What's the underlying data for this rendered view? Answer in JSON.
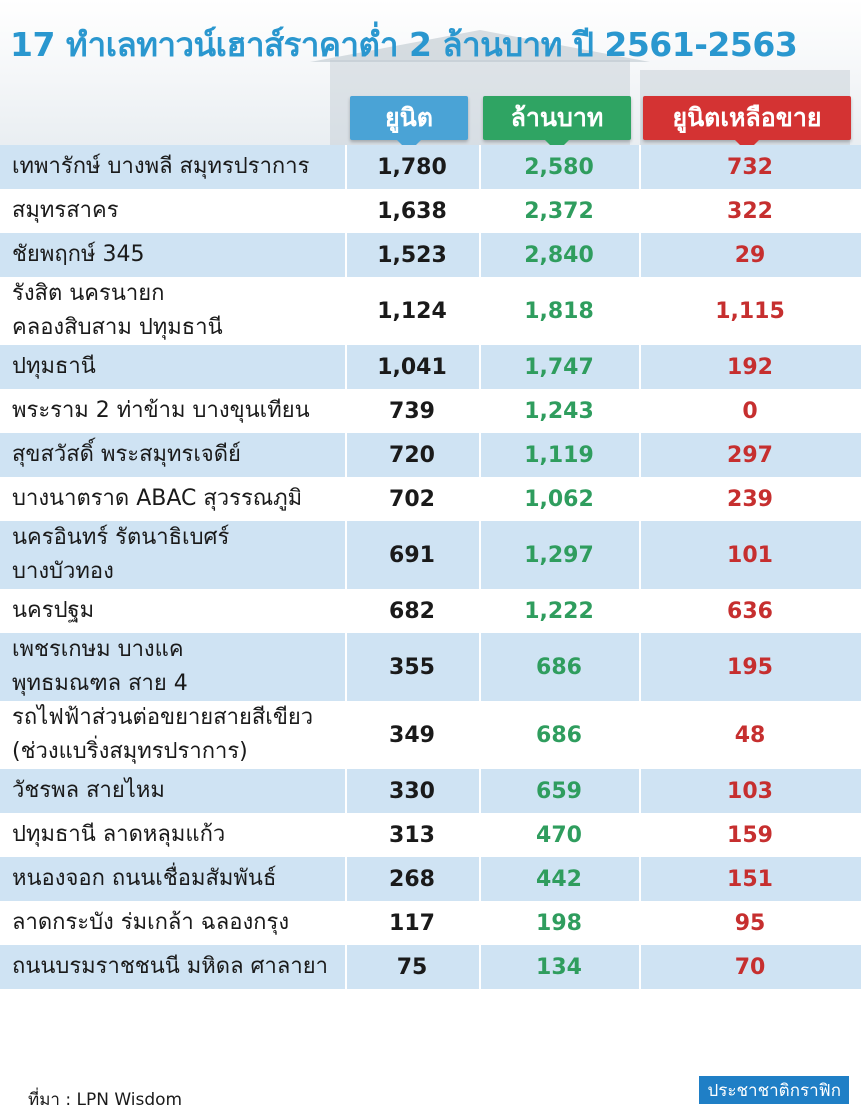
{
  "title": "17 ทำเลทาวน์เฮาส์ราคาต่ำ 2 ล้านบาท ปี 2561-2563",
  "colors": {
    "title": "#2a97cf",
    "units_header": "#4aa3d6",
    "million_header": "#2fa463",
    "remaining_header": "#d43333",
    "row_shade": "#cfe3f3"
  },
  "headers": {
    "units": "ยูนิต",
    "million": "ล้านบาท",
    "remaining": "ยูนิตเหลือขาย"
  },
  "chart_data": {
    "type": "table",
    "title": "17 ทำเลทาวน์เฮาส์ราคาต่ำ 2 ล้านบาท ปี 2561-2563",
    "columns": [
      "ยูนิต",
      "ล้านบาท",
      "ยูนิตเหลือขาย"
    ],
    "rows": [
      {
        "name": [
          "เทพารักษ์ บางพลี สมุทรปราการ"
        ],
        "units": "1,780",
        "million": "2,580",
        "remaining": "732",
        "shade": true
      },
      {
        "name": [
          "สมุทรสาคร"
        ],
        "units": "1,638",
        "million": "2,372",
        "remaining": "322",
        "shade": false
      },
      {
        "name": [
          "ชัยพฤกษ์ 345"
        ],
        "units": "1,523",
        "million": "2,840",
        "remaining": "29",
        "shade": true
      },
      {
        "name": [
          "รังสิต นครนายก",
          "คลองสิบสาม ปทุมธานี"
        ],
        "units": "1,124",
        "million": "1,818",
        "remaining": "1,115",
        "shade": false
      },
      {
        "name": [
          "ปทุมธานี"
        ],
        "units": "1,041",
        "million": "1,747",
        "remaining": "192",
        "shade": true
      },
      {
        "name": [
          "พระราม 2 ท่าข้าม บางขุนเทียน"
        ],
        "units": "739",
        "million": "1,243",
        "remaining": "0",
        "shade": false
      },
      {
        "name": [
          "สุขสวัสดิ์ พระสมุทรเจดีย์"
        ],
        "units": "720",
        "million": "1,119",
        "remaining": "297",
        "shade": true
      },
      {
        "name": [
          "บางนาตราด ABAC สุวรรณภูมิ"
        ],
        "units": "702",
        "million": "1,062",
        "remaining": "239",
        "shade": false
      },
      {
        "name": [
          "นครอินทร์ รัตนาธิเบศร์",
          "บางบัวทอง"
        ],
        "units": "691",
        "million": "1,297",
        "remaining": "101",
        "shade": true
      },
      {
        "name": [
          "นครปฐม"
        ],
        "units": "682",
        "million": "1,222",
        "remaining": "636",
        "shade": false
      },
      {
        "name": [
          "เพชรเกษม บางแค",
          "พุทธมณฑล สาย 4"
        ],
        "units": "355",
        "million": "686",
        "remaining": "195",
        "shade": true
      },
      {
        "name": [
          "รถไฟฟ้าส่วนต่อขยายสายสีเขียว",
          "(ช่วงแบริ่งสมุทรปราการ)"
        ],
        "units": "349",
        "million": "686",
        "remaining": "48",
        "shade": false
      },
      {
        "name": [
          "วัชรพล สายไหม"
        ],
        "units": "330",
        "million": "659",
        "remaining": "103",
        "shade": true
      },
      {
        "name": [
          "ปทุมธานี ลาดหลุมแก้ว"
        ],
        "units": "313",
        "million": "470",
        "remaining": "159",
        "shade": false
      },
      {
        "name": [
          "หนองจอก ถนนเชื่อมสัมพันธ์"
        ],
        "units": "268",
        "million": "442",
        "remaining": "151",
        "shade": true
      },
      {
        "name": [
          "ลาดกระบัง ร่มเกล้า ฉลองกรุง"
        ],
        "units": "117",
        "million": "198",
        "remaining": "95",
        "shade": false
      },
      {
        "name": [
          "ถนนบรมราชชนนี มหิดล ศาลายา"
        ],
        "units": "75",
        "million": "134",
        "remaining": "70",
        "shade": true
      }
    ]
  },
  "footer": {
    "source": "ที่มา : LPN Wisdom",
    "logo": "ประชาชาติกราฟิก"
  }
}
